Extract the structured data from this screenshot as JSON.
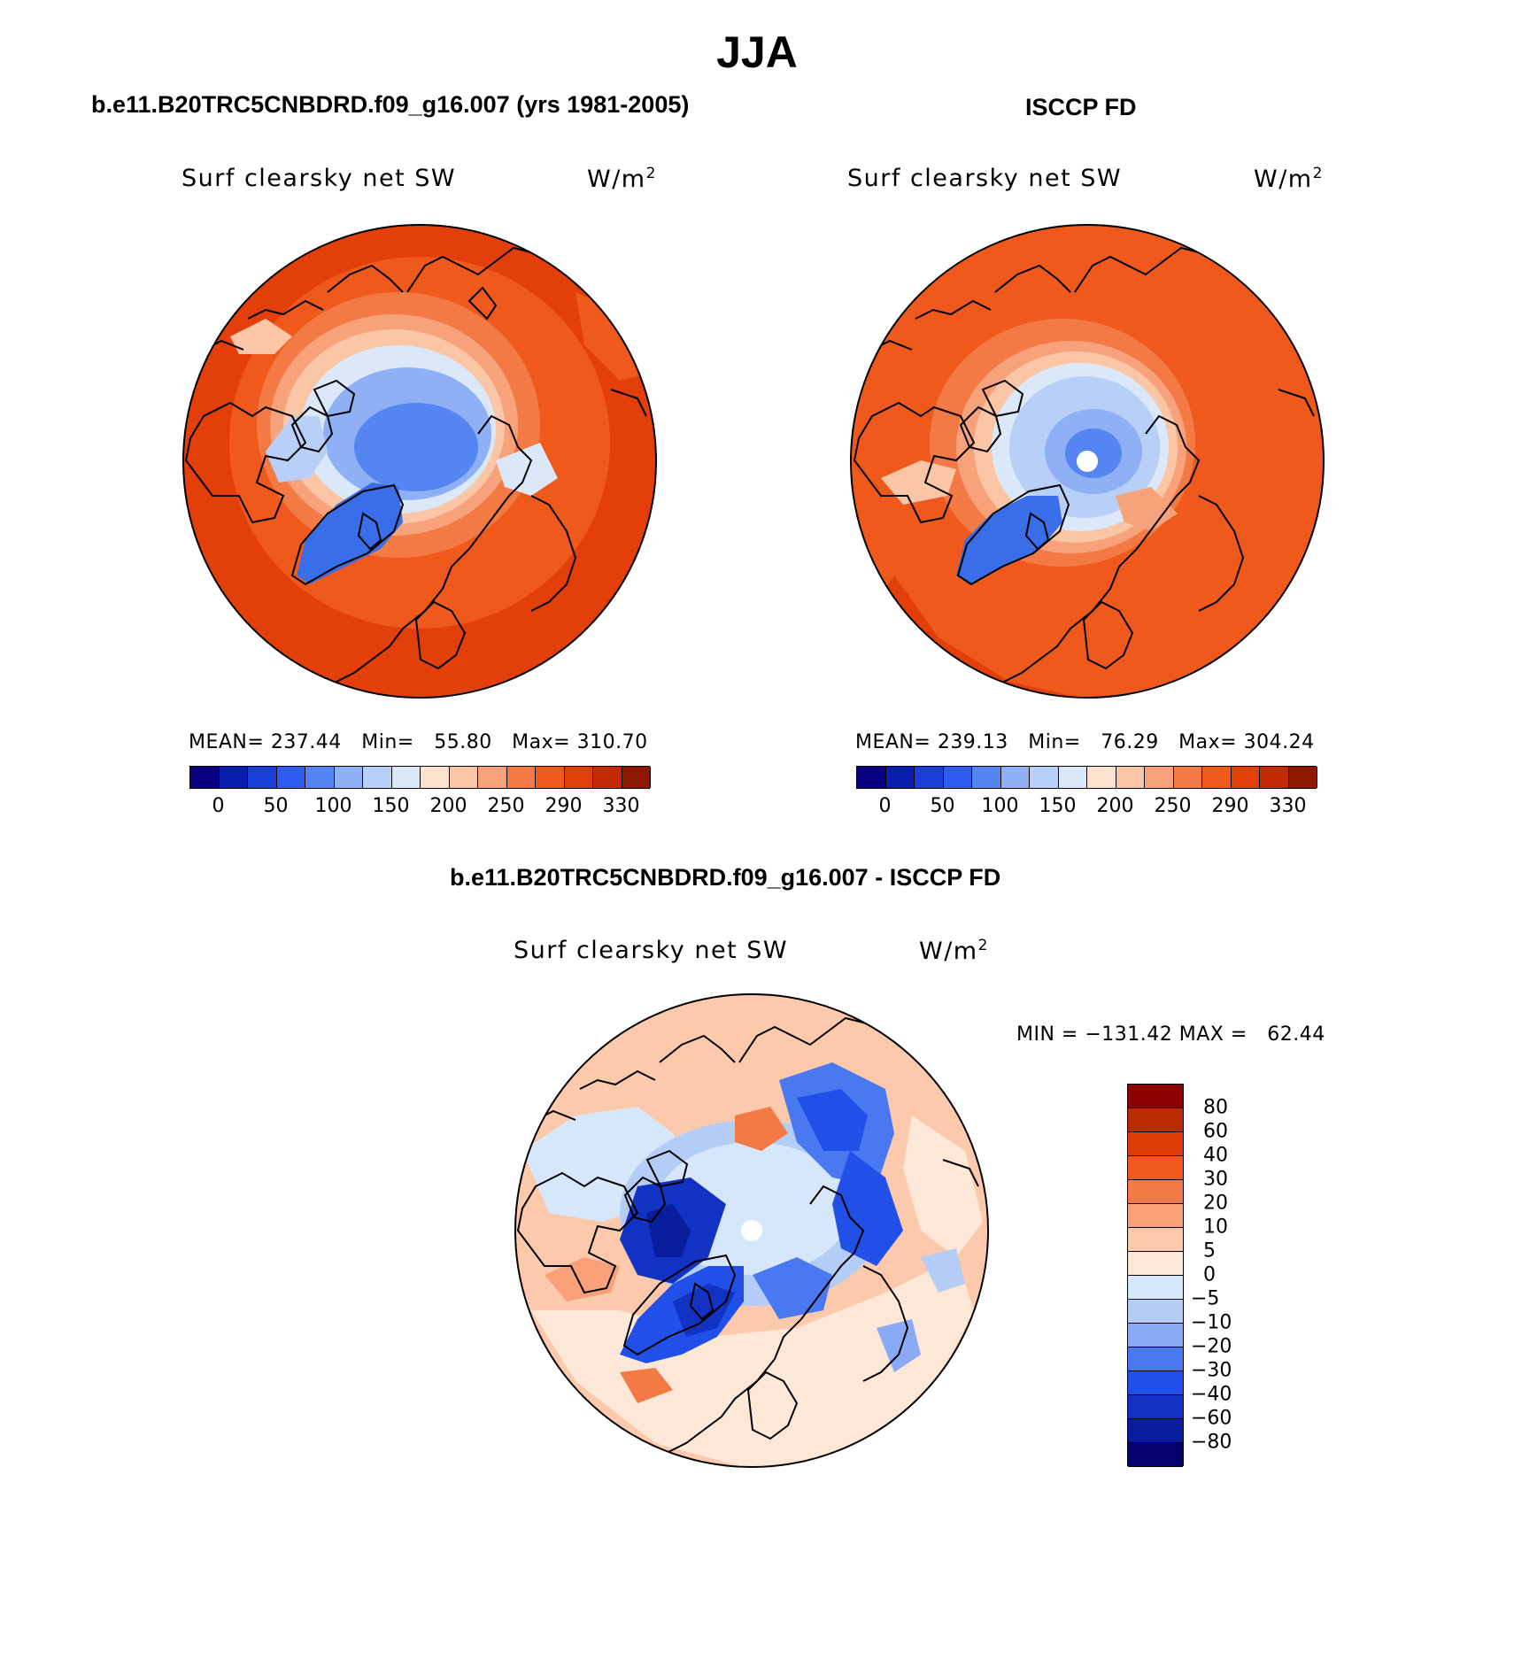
{
  "figure": {
    "title": "JJA"
  },
  "panels": [
    {
      "heading": "b.e11.B20TRC5CNBDRD.f09_g16.007 (yrs 1981-2005)",
      "variable": "Surf clearsky net SW",
      "units_base": "W/m",
      "units_exp": "2",
      "stats": "MEAN= 237.44   Min=   55.80   Max= 310.70",
      "mean": 237.44,
      "min": 55.8,
      "max": 310.7,
      "missing_pole": false
    },
    {
      "heading": "ISCCP FD",
      "variable": "Surf clearsky net SW",
      "units_base": "W/m",
      "units_exp": "2",
      "stats": "MEAN= 239.13   Min=   76.29   Max= 304.24",
      "mean": 239.13,
      "min": 76.29,
      "max": 304.24,
      "missing_pole": true
    },
    {
      "heading": "b.e11.B20TRC5CNBDRD.f09_g16.007 - ISCCP FD",
      "variable": "Surf clearsky net SW",
      "units_base": "W/m",
      "units_exp": "2",
      "stats": "MIN = −131.42 MAX =   62.44",
      "min": -131.42,
      "max": 62.44,
      "missing_pole": true
    }
  ],
  "colorbars": {
    "absolute": {
      "tick_labels": [
        "0",
        "50",
        "100",
        "150",
        "200",
        "250",
        "290",
        "330"
      ],
      "colors": [
        "#08007f",
        "#0a1fb0",
        "#1a3fd8",
        "#2d5cf0",
        "#5585f0",
        "#8fb0f5",
        "#b8cff7",
        "#dbe8fa",
        "#fde3cf",
        "#fbc6a6",
        "#f7a27a",
        "#f47a45",
        "#ef5a1c",
        "#e23f0a",
        "#c42a02",
        "#8c1a00"
      ]
    },
    "difference": {
      "tick_labels": [
        "80",
        "60",
        "40",
        "30",
        "20",
        "10",
        "5",
        "0",
        "−5",
        "−10",
        "−20",
        "−30",
        "−40",
        "−60",
        "−80"
      ],
      "colors": [
        "#8b0000",
        "#b82a00",
        "#e03c08",
        "#f0581c",
        "#f47a45",
        "#f8a07a",
        "#fcc9ac",
        "#fde8d8",
        "#d7e7fb",
        "#b4cdf7",
        "#8aaaf5",
        "#4a78f0",
        "#2050e8",
        "#1232c4",
        "#081e9c",
        "#06006f"
      ]
    }
  }
}
